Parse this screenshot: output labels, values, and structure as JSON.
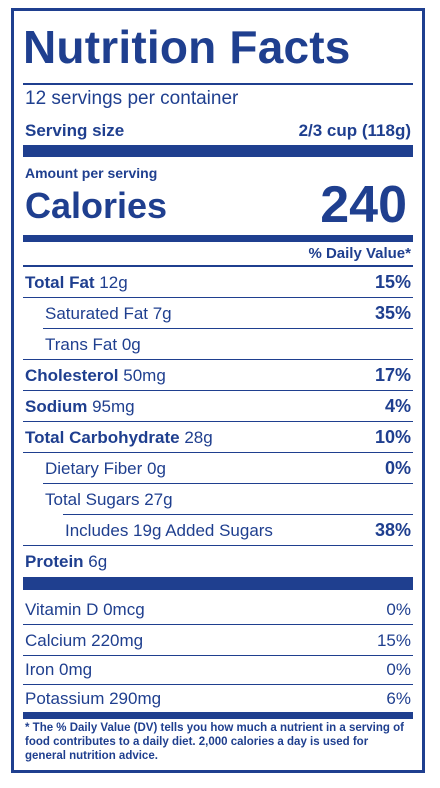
{
  "title": "Nutrition Facts",
  "servings_per_container": "12 servings per container",
  "serving_size": {
    "label": "Serving size",
    "value": "2/3 cup (118g)"
  },
  "amount_per_serving": "Amount per serving",
  "calories": {
    "label": "Calories",
    "value": "240"
  },
  "daily_value_header": "% Daily Value*",
  "nutrients": [
    {
      "bold": "Total Fat",
      "amount": " 12g",
      "pct": "15%"
    },
    {
      "bold": "",
      "amount": "Saturated Fat 7g",
      "pct": "35%"
    },
    {
      "bold": "",
      "amount": "Trans Fat 0g",
      "pct": ""
    },
    {
      "bold": "Cholesterol",
      "amount": " 50mg",
      "pct": "17%"
    },
    {
      "bold": "Sodium",
      "amount": " 95mg",
      "pct": "4%"
    },
    {
      "bold": "Total Carbohydrate",
      "amount": " 28g",
      "pct": "10%"
    },
    {
      "bold": "",
      "amount": "Dietary Fiber 0g",
      "pct": "0%"
    },
    {
      "bold": "",
      "amount": "Total Sugars 27g",
      "pct": ""
    },
    {
      "bold": "",
      "amount": "Includes 19g Added Sugars",
      "pct": "38%"
    },
    {
      "bold": "Protein",
      "amount": " 6g",
      "pct": ""
    }
  ],
  "vitamins": [
    {
      "name": "Vitamin D 0mcg",
      "pct": "0%"
    },
    {
      "name": "Calcium 220mg",
      "pct": "15%"
    },
    {
      "name": "Iron 0mg",
      "pct": "0%"
    },
    {
      "name": "Potassium 290mg",
      "pct": "6%"
    }
  ],
  "footnote": "* The % Daily Value (DV) tells you how much a nutrient in a serving of food contributes to a daily diet. 2,000 calories a day is used for general nutrition advice.",
  "colors": {
    "ink": "#1f3f8f",
    "background": "#ffffff"
  }
}
